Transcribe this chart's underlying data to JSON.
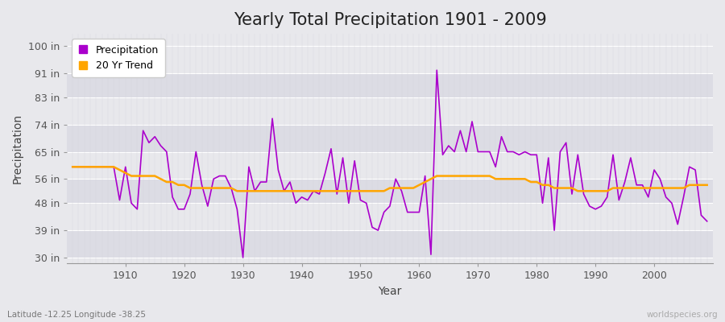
{
  "title": "Yearly Total Precipitation 1901 - 2009",
  "xlabel": "Year",
  "ylabel": "Precipitation",
  "lat_lon_label": "Latitude -12.25 Longitude -38.25",
  "watermark": "worldspecies.org",
  "years": [
    1901,
    1902,
    1903,
    1904,
    1905,
    1906,
    1907,
    1908,
    1909,
    1910,
    1911,
    1912,
    1913,
    1914,
    1915,
    1916,
    1917,
    1918,
    1919,
    1920,
    1921,
    1922,
    1923,
    1924,
    1925,
    1926,
    1927,
    1928,
    1929,
    1930,
    1931,
    1932,
    1933,
    1934,
    1935,
    1936,
    1937,
    1938,
    1939,
    1940,
    1941,
    1942,
    1943,
    1944,
    1945,
    1946,
    1947,
    1948,
    1949,
    1950,
    1951,
    1952,
    1953,
    1954,
    1955,
    1956,
    1957,
    1958,
    1959,
    1960,
    1961,
    1962,
    1963,
    1964,
    1965,
    1966,
    1967,
    1968,
    1969,
    1970,
    1971,
    1972,
    1973,
    1974,
    1975,
    1976,
    1977,
    1978,
    1979,
    1980,
    1981,
    1982,
    1983,
    1984,
    1985,
    1986,
    1987,
    1988,
    1989,
    1990,
    1991,
    1992,
    1993,
    1994,
    1995,
    1996,
    1997,
    1998,
    1999,
    2000,
    2001,
    2002,
    2003,
    2004,
    2005,
    2006,
    2007,
    2008,
    2009
  ],
  "precip": [
    60,
    60,
    60,
    60,
    60,
    60,
    60,
    60,
    49,
    60,
    48,
    46,
    72,
    68,
    70,
    67,
    65,
    50,
    46,
    46,
    51,
    65,
    54,
    47,
    56,
    57,
    57,
    53,
    46,
    30,
    60,
    52,
    55,
    55,
    76,
    59,
    52,
    55,
    48,
    50,
    49,
    52,
    51,
    58,
    66,
    51,
    63,
    48,
    62,
    49,
    48,
    40,
    39,
    45,
    47,
    56,
    52,
    45,
    45,
    45,
    57,
    31,
    92,
    64,
    67,
    65,
    72,
    65,
    75,
    65,
    65,
    65,
    60,
    70,
    65,
    65,
    64,
    65,
    64,
    64,
    48,
    63,
    39,
    65,
    68,
    51,
    64,
    51,
    47,
    46,
    47,
    50,
    64,
    49,
    55,
    63,
    54,
    54,
    50,
    59,
    56,
    50,
    48,
    41,
    50,
    60,
    59,
    44,
    42
  ],
  "trend": [
    60,
    60,
    60,
    60,
    60,
    60,
    60,
    60,
    59,
    58,
    57,
    57,
    57,
    57,
    57,
    56,
    55,
    55,
    54,
    54,
    53,
    53,
    53,
    53,
    53,
    53,
    53,
    53,
    52,
    52,
    52,
    52,
    52,
    52,
    52,
    52,
    52,
    52,
    52,
    52,
    52,
    52,
    52,
    52,
    52,
    52,
    52,
    52,
    52,
    52,
    52,
    52,
    52,
    52,
    53,
    53,
    53,
    53,
    53,
    54,
    55,
    56,
    57,
    57,
    57,
    57,
    57,
    57,
    57,
    57,
    57,
    57,
    56,
    56,
    56,
    56,
    56,
    56,
    55,
    55,
    54,
    54,
    53,
    53,
    53,
    53,
    52,
    52,
    52,
    52,
    52,
    52,
    53,
    53,
    53,
    53,
    53,
    53,
    53,
    53,
    53,
    53,
    53,
    53,
    53,
    54,
    54,
    54,
    54
  ],
  "precip_color": "#AA00CC",
  "trend_color": "#FFA500",
  "fig_bg_color": "#E8E8EC",
  "plot_bg_color": "#E8E8EC",
  "grid_color_h": "#FFFFFF",
  "grid_color_v": "#D0D0D8",
  "yticks": [
    30,
    39,
    48,
    56,
    65,
    74,
    83,
    91,
    100
  ],
  "ytick_labels": [
    "30 in",
    "39 in",
    "48 in",
    "56 in",
    "65 in",
    "74 in",
    "83 in",
    "91 in",
    "100 in"
  ],
  "ylim": [
    28,
    104
  ],
  "xlim": [
    1900,
    2010
  ],
  "xticks": [
    1910,
    1920,
    1930,
    1940,
    1950,
    1960,
    1970,
    1980,
    1990,
    2000
  ],
  "title_fontsize": 15,
  "axis_label_fontsize": 10,
  "tick_fontsize": 9,
  "legend_fontsize": 9
}
